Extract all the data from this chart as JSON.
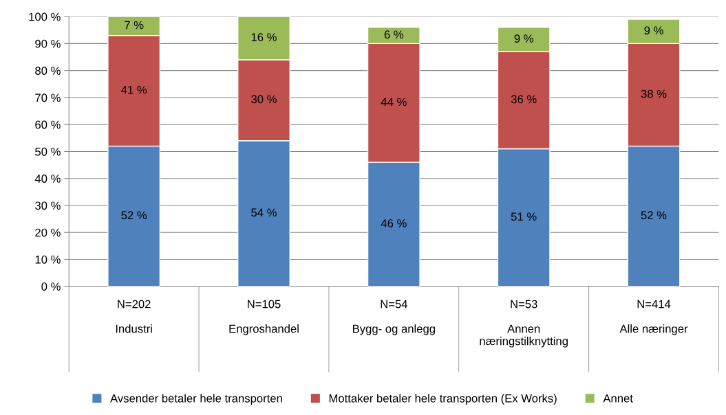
{
  "chart_data": {
    "type": "bar",
    "stacked": true,
    "categories": [
      "N=202\n\nIndustri",
      "N=105\n\nEngroshandel",
      "N=54\n\nBygg- og anlegg",
      "N=53\n\nAnnen\nnæringstilknytting",
      "N=414\n\nAlle næringer"
    ],
    "series": [
      {
        "name": "Avsender betaler hele transporten",
        "color": "#4f81bd",
        "values": [
          52,
          54,
          46,
          51,
          52
        ],
        "value_labels": [
          "52 %",
          "54 %",
          "46 %",
          "51 %",
          "52 %"
        ]
      },
      {
        "name": "Mottaker betaler hele transporten (Ex Works)",
        "color": "#c0504d",
        "values": [
          41,
          30,
          44,
          36,
          38
        ],
        "value_labels": [
          "41 %",
          "30 %",
          "44 %",
          "36 %",
          "38 %"
        ]
      },
      {
        "name": "Annet",
        "color": "#9bbb59",
        "values": [
          7,
          16,
          6,
          9,
          9
        ],
        "value_labels": [
          "7 %",
          "16 %",
          "6 %",
          "9 %",
          "9 %"
        ]
      }
    ],
    "ylim": [
      0,
      100
    ],
    "yticks": [
      {
        "value": 0,
        "label": "0 %"
      },
      {
        "value": 10,
        "label": "10 %"
      },
      {
        "value": 20,
        "label": "20 %"
      },
      {
        "value": 30,
        "label": "30 %"
      },
      {
        "value": 40,
        "label": "40 %"
      },
      {
        "value": 50,
        "label": "50 %"
      },
      {
        "value": 60,
        "label": "60 %"
      },
      {
        "value": 70,
        "label": "70 %"
      },
      {
        "value": 80,
        "label": "80 %"
      },
      {
        "value": 90,
        "label": "90 %"
      },
      {
        "value": 100,
        "label": "100 %"
      }
    ],
    "grid": "y",
    "legend": "bottom"
  }
}
